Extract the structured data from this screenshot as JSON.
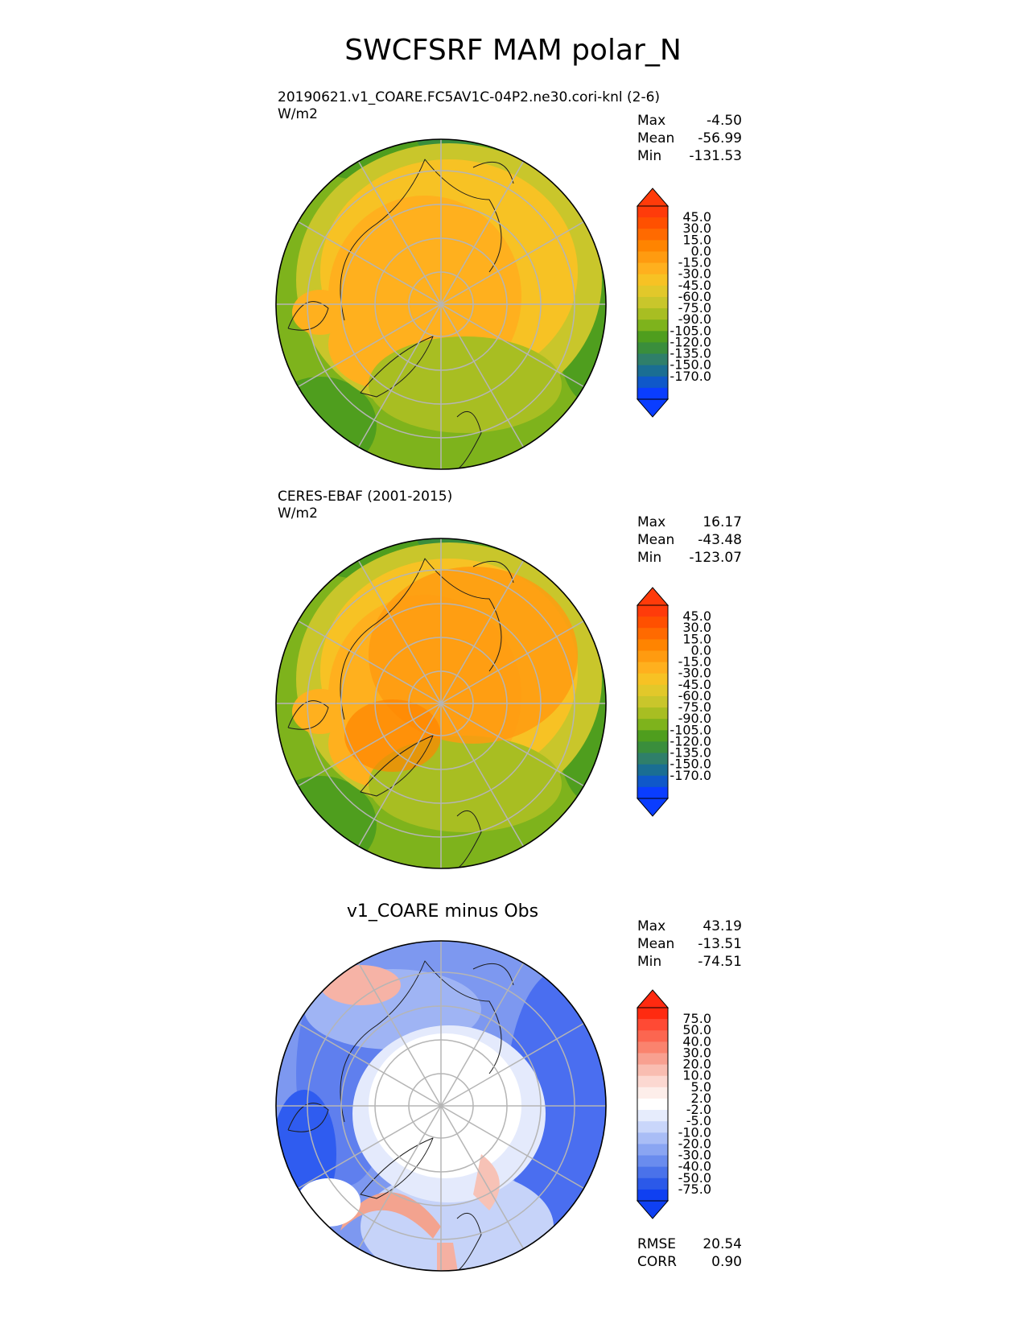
{
  "page_title": "SWCFSRF MAM polar_N",
  "panels": [
    {
      "id": "model",
      "title": "20190621.v1_COARE.FC5AV1C-04P2.ne30.cori-knl (2-6)",
      "units": "W/m2",
      "stats": [
        {
          "label": "Max",
          "value": "-4.50"
        },
        {
          "label": "Mean",
          "value": "-56.99"
        },
        {
          "label": "Min",
          "value": "-131.53"
        }
      ],
      "colorbar": {
        "labels": [
          "45.0",
          "30.0",
          "15.0",
          "0.0",
          "-15.0",
          "-30.0",
          "-45.0",
          "-60.0",
          "-75.0",
          "-90.0",
          "-105.0",
          "-120.0",
          "-135.0",
          "-150.0",
          "-170.0"
        ],
        "colors": [
          "#ff3b0a",
          "#ff5000",
          "#ff6a00",
          "#ff8400",
          "#ff9b10",
          "#ffb01e",
          "#f7c224",
          "#e2c82a",
          "#c9c62b",
          "#a8be22",
          "#7eb31c",
          "#4f9e1e",
          "#3a8e3c",
          "#2f7f6a",
          "#1a6e93",
          "#0f58c9",
          "#0a3dff"
        ],
        "top_color": "#ff3b0a",
        "bottom_color": "#0a3dff"
      }
    },
    {
      "id": "obs",
      "title": "CERES-EBAF (2001-2015)",
      "units": "W/m2",
      "stats": [
        {
          "label": "Max",
          "value": "16.17"
        },
        {
          "label": "Mean",
          "value": "-43.48"
        },
        {
          "label": "Min",
          "value": "-123.07"
        }
      ],
      "colorbar": {
        "labels": [
          "45.0",
          "30.0",
          "15.0",
          "0.0",
          "-15.0",
          "-30.0",
          "-45.0",
          "-60.0",
          "-75.0",
          "-90.0",
          "-105.0",
          "-120.0",
          "-135.0",
          "-150.0",
          "-170.0"
        ],
        "colors": [
          "#ff3b0a",
          "#ff5000",
          "#ff6a00",
          "#ff8400",
          "#ff9b10",
          "#ffb01e",
          "#f7c224",
          "#e2c82a",
          "#c9c62b",
          "#a8be22",
          "#7eb31c",
          "#4f9e1e",
          "#3a8e3c",
          "#2f7f6a",
          "#1a6e93",
          "#0f58c9",
          "#0a3dff"
        ],
        "top_color": "#ff3b0a",
        "bottom_color": "#0a3dff"
      }
    },
    {
      "id": "diff",
      "title": "v1_COARE minus Obs",
      "stats": [
        {
          "label": "Max",
          "value": "43.19"
        },
        {
          "label": "Mean",
          "value": "-13.51"
        },
        {
          "label": "Min",
          "value": "-74.51"
        }
      ],
      "error_stats": [
        {
          "label": "RMSE",
          "value": "20.54"
        },
        {
          "label": "CORR",
          "value": "0.90"
        }
      ],
      "colorbar": {
        "labels": [
          "75.0",
          "50.0",
          "40.0",
          "30.0",
          "20.0",
          "10.0",
          "5.0",
          "2.0",
          "-2.0",
          "-5.0",
          "-10.0",
          "-20.0",
          "-30.0",
          "-40.0",
          "-50.0",
          "-75.0"
        ],
        "colors": [
          "#ff2a10",
          "#ff4a34",
          "#fc6650",
          "#fa836e",
          "#f8a090",
          "#f9bdb1",
          "#fcd8d1",
          "#fdeeea",
          "#ffffff",
          "#e6ecfc",
          "#c9d6fa",
          "#a9bdf6",
          "#8aa5f2",
          "#6a8cee",
          "#4a72ea",
          "#2b59e9",
          "#0f40f2"
        ],
        "top_color": "#ff2a10",
        "bottom_color": "#0f40f2"
      }
    }
  ]
}
